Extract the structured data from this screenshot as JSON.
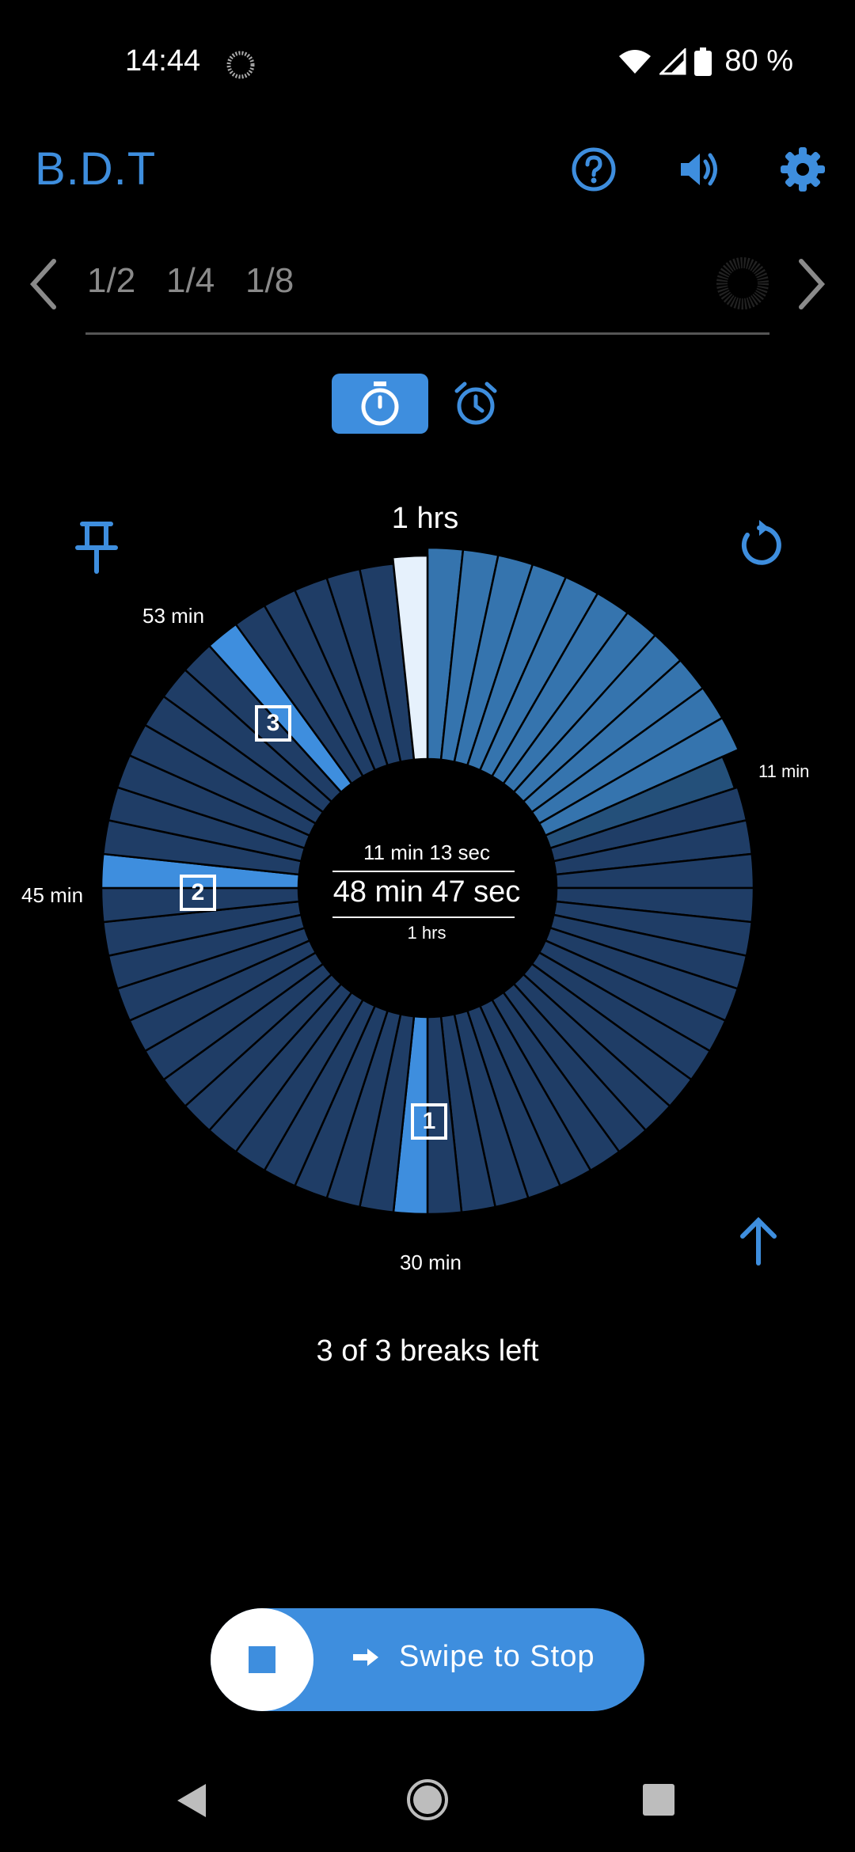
{
  "status_bar": {
    "time": "14:44",
    "battery": "80 %"
  },
  "app": {
    "title": "B.D.T"
  },
  "fractions": [
    "1/2",
    "1/4",
    "1/8"
  ],
  "dial": {
    "top_label": "1 hrs",
    "label_53": "53 min",
    "label_11": "11 min",
    "label_45": "45 min",
    "label_30": "30 min",
    "elapsed": "11 min 13 sec",
    "remaining": "48 min 47 sec",
    "total": "1 hrs",
    "breaks": [
      "1",
      "2",
      "3"
    ],
    "progress_fraction": 0.187
  },
  "breaks_left": "3 of 3 breaks left",
  "swipe": {
    "label": "Swipe to Stop"
  },
  "colors": {
    "accent": "#3e8ede",
    "dial_elapsed": "#3574ae",
    "dial_remaining": "#1f3d66",
    "dial_current": "#e6f1fc",
    "dial_current_minute": "#24507a"
  },
  "icons": [
    "help-icon",
    "volume-icon",
    "settings-icon",
    "pin-icon",
    "reset-icon",
    "arrow-up-icon",
    "stopwatch-icon",
    "alarm-icon"
  ]
}
